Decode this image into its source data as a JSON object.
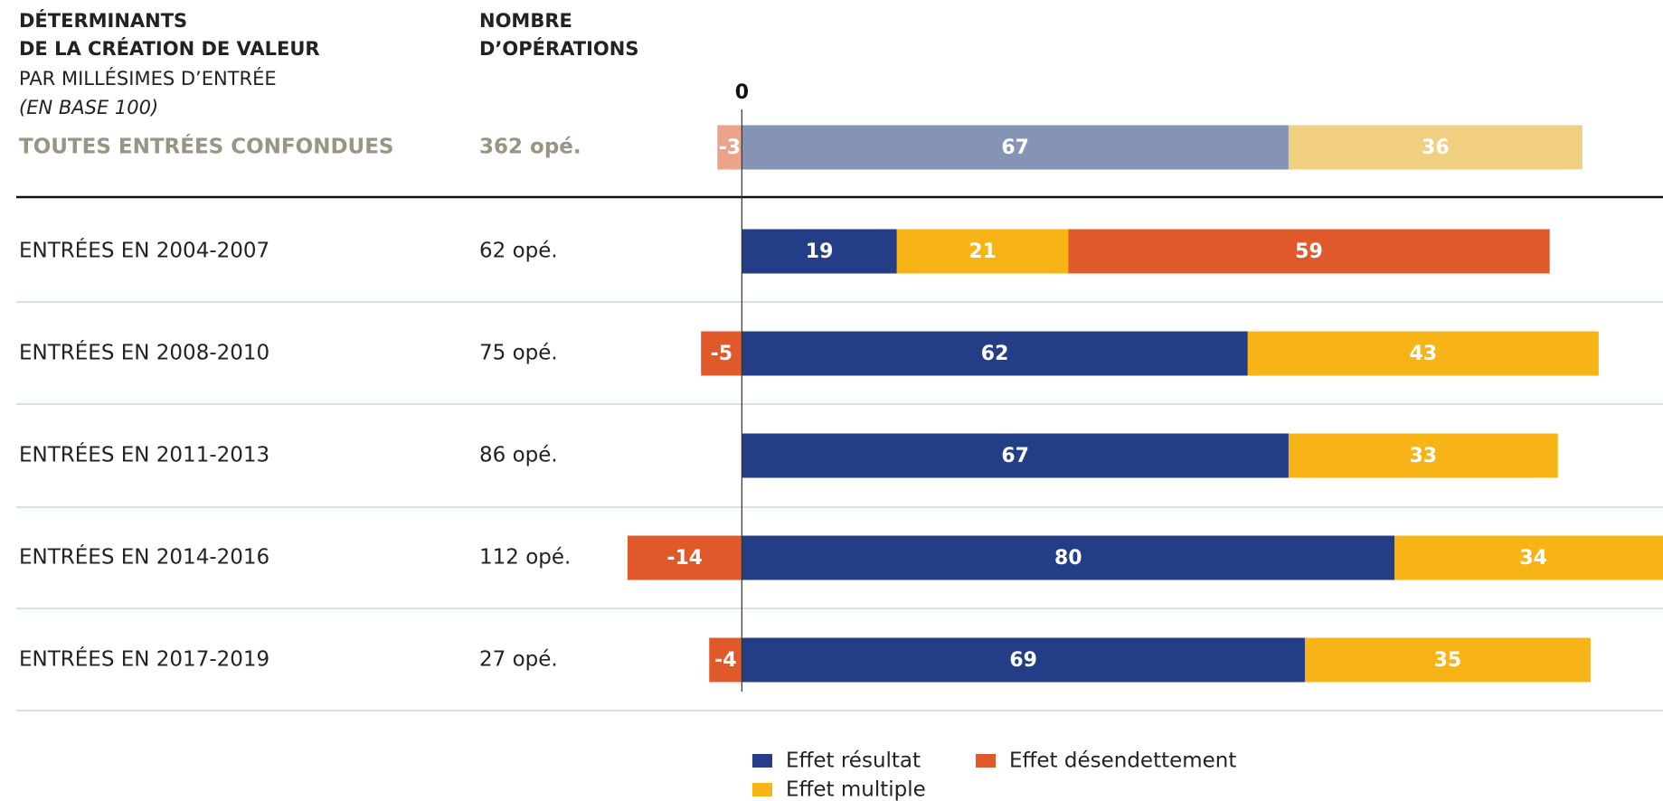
{
  "chart_data": {
    "type": "stacked-bar-horizontal",
    "header": {
      "title_line1": "DÉTERMINANTS",
      "title_line2": "DE LA CRÉATION DE VALEUR",
      "subtitle": "PAR MILLÉSIMES D’ENTRÉE",
      "unit": "(EN BASE 100)",
      "count_line1": "NOMBRE",
      "count_line2": "D’OPÉRATIONS"
    },
    "categories": [
      "TOUTES ENTRÉES CONFONDUES",
      "ENTRÉES EN 2004-2007",
      "ENTRÉES EN 2008-2010",
      "ENTRÉES EN 2011-2013",
      "ENTRÉES EN 2014-2016",
      "ENTRÉES EN 2017-2019"
    ],
    "counts": [
      "362 opé.",
      "62 opé.",
      "75 opé.",
      "86 opé.",
      "112 opé.",
      "27 opé."
    ],
    "series": [
      {
        "name": "Effet résultat",
        "color": "#233e87",
        "summary_color": "#8593b5",
        "values": [
          67,
          19,
          62,
          67,
          80,
          69
        ]
      },
      {
        "name": "Effet désendettement",
        "color": "#e0592b",
        "summary_color": "#eca38b",
        "values": [
          -3,
          59,
          -5,
          null,
          -14,
          -4
        ]
      },
      {
        "name": "Effet multiple",
        "color": "#f8b416",
        "summary_color": "#f1cf80",
        "values": [
          36,
          21,
          43,
          33,
          34,
          35
        ]
      }
    ],
    "xlim": [
      -15,
      112
    ],
    "xticks": [
      0
    ]
  }
}
